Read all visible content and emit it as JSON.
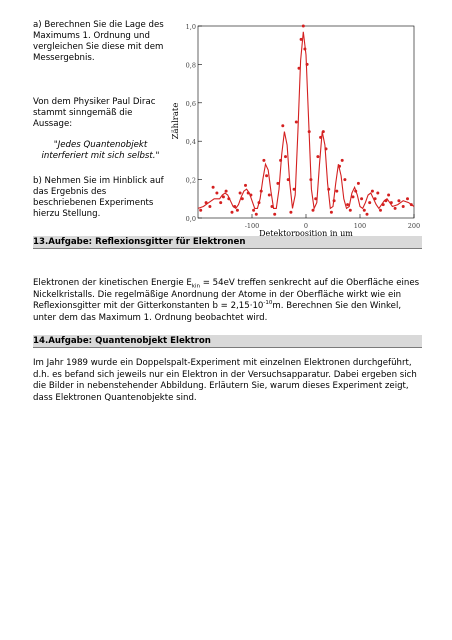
{
  "task_a": "a) Berechnen Sie die Lage des Maximums 1. Ordnung und vergleichen Sie diese mit dem Messergebnis.",
  "dirac_intro": "Von dem Physiker Paul Dirac stammt sinngemäß die Aussage:",
  "dirac_quote": "\"Jedes Quantenobjekt interferiert mit sich selbst.\"",
  "task_b": "b) Nehmen Sie im Hinblick auf das Ergebnis des beschriebenen Experiments hierzu Stellung.",
  "section13": {
    "heading": "13.Aufgabe: Reflexionsgitter für Elektronen",
    "p1_a": "Elektronen der kinetischen Energie E",
    "p1_sub": "kin",
    "p1_b": " = 54eV treffen senkrecht auf die Oberfläche eines Nickelkristalls. Die regelmäßige Anordnung der Atome in der Oberfläche wirkt wie ein Reflexionsgitter mit der Gitterkonstanten b = 2,15·10",
    "p1_sup": "-10",
    "p1_c": "m. Berechnen Sie den Winkel, unter dem das Maximum 1. Ordnung beobachtet wird."
  },
  "section14": {
    "heading": "14.Aufgabe: Quantenobjekt Elektron",
    "paragraph": "Im Jahr 1989 wurde ein Doppelspalt-Experiment mit einzelnen Elektronen durchgeführt, d.h. es befand sich jeweils nur ein Elektron in der Versuchsapparatur. Dabei ergeben sich die Bilder in nebenstehender Abbildung. Erläutern Sie, warum dieses Experiment zeigt, dass Elektronen Quantenobjekte sind."
  },
  "chart_data": {
    "type": "scatter",
    "ylabel": "Zählrate",
    "xlabel": "Detektorposition in µm",
    "xticks": [
      "-100",
      "0",
      "100",
      "200"
    ],
    "yticks": [
      "1,0",
      "0,8",
      "0,6",
      "0,4",
      "0,2",
      "0,0"
    ],
    "xlim": [
      -200,
      200
    ],
    "ylim": [
      0,
      1.0
    ],
    "fit_color": "#d42020",
    "point_color": "#d42020",
    "grid": false,
    "series": [
      {
        "type": "line",
        "x": [
          -200,
          -190,
          -180,
          -170,
          -160,
          -155,
          -150,
          -145,
          -140,
          -135,
          -130,
          -125,
          -120,
          -115,
          -110,
          -105,
          -100,
          -95,
          -90,
          -85,
          -80,
          -75,
          -70,
          -65,
          -60,
          -55,
          -50,
          -45,
          -40,
          -35,
          -30,
          -25,
          -20,
          -15,
          -10,
          -5,
          0,
          5,
          10,
          15,
          20,
          25,
          30,
          35,
          40,
          45,
          50,
          55,
          60,
          65,
          70,
          75,
          80,
          85,
          90,
          95,
          100,
          105,
          110,
          115,
          120,
          125,
          130,
          135,
          140,
          145,
          150,
          155,
          160,
          170,
          180,
          190,
          200
        ],
        "y": [
          0.05,
          0.06,
          0.08,
          0.1,
          0.1,
          0.12,
          0.13,
          0.12,
          0.09,
          0.06,
          0.05,
          0.07,
          0.11,
          0.14,
          0.15,
          0.13,
          0.09,
          0.05,
          0.05,
          0.1,
          0.2,
          0.28,
          0.25,
          0.14,
          0.05,
          0.05,
          0.15,
          0.33,
          0.45,
          0.38,
          0.18,
          0.05,
          0.12,
          0.45,
          0.82,
          0.97,
          0.85,
          0.5,
          0.15,
          0.05,
          0.08,
          0.28,
          0.45,
          0.38,
          0.18,
          0.05,
          0.06,
          0.18,
          0.28,
          0.22,
          0.1,
          0.05,
          0.06,
          0.13,
          0.16,
          0.12,
          0.06,
          0.05,
          0.08,
          0.12,
          0.13,
          0.1,
          0.07,
          0.05,
          0.07,
          0.09,
          0.1,
          0.08,
          0.06,
          0.07,
          0.09,
          0.08,
          0.06
        ]
      },
      {
        "type": "points",
        "x": [
          -195,
          -185,
          -178,
          -172,
          -165,
          -158,
          -153,
          -148,
          -143,
          -137,
          -132,
          -127,
          -122,
          -118,
          -112,
          -107,
          -102,
          -97,
          -92,
          -87,
          -83,
          -78,
          -73,
          -68,
          -63,
          -58,
          -52,
          -47,
          -43,
          -38,
          -33,
          -28,
          -22,
          -18,
          -13,
          -9,
          -5,
          -2,
          2,
          6,
          9,
          13,
          18,
          22,
          27,
          32,
          37,
          42,
          47,
          52,
          57,
          62,
          67,
          72,
          77,
          82,
          87,
          92,
          97,
          103,
          108,
          113,
          118,
          123,
          128,
          133,
          138,
          143,
          148,
          153,
          158,
          165,
          172,
          180,
          188,
          195
        ],
        "y": [
          0.04,
          0.08,
          0.06,
          0.16,
          0.13,
          0.08,
          0.11,
          0.14,
          0.1,
          0.03,
          0.06,
          0.04,
          0.13,
          0.1,
          0.17,
          0.13,
          0.12,
          0.04,
          0.02,
          0.08,
          0.14,
          0.3,
          0.22,
          0.12,
          0.06,
          0.02,
          0.18,
          0.3,
          0.48,
          0.32,
          0.2,
          0.03,
          0.15,
          0.5,
          0.78,
          0.93,
          1.0,
          0.88,
          0.8,
          0.45,
          0.2,
          0.04,
          0.1,
          0.32,
          0.42,
          0.45,
          0.36,
          0.15,
          0.03,
          0.09,
          0.14,
          0.27,
          0.3,
          0.2,
          0.07,
          0.04,
          0.11,
          0.14,
          0.18,
          0.1,
          0.04,
          0.02,
          0.08,
          0.14,
          0.1,
          0.13,
          0.04,
          0.07,
          0.09,
          0.12,
          0.08,
          0.05,
          0.09,
          0.06,
          0.1,
          0.07
        ]
      }
    ]
  }
}
